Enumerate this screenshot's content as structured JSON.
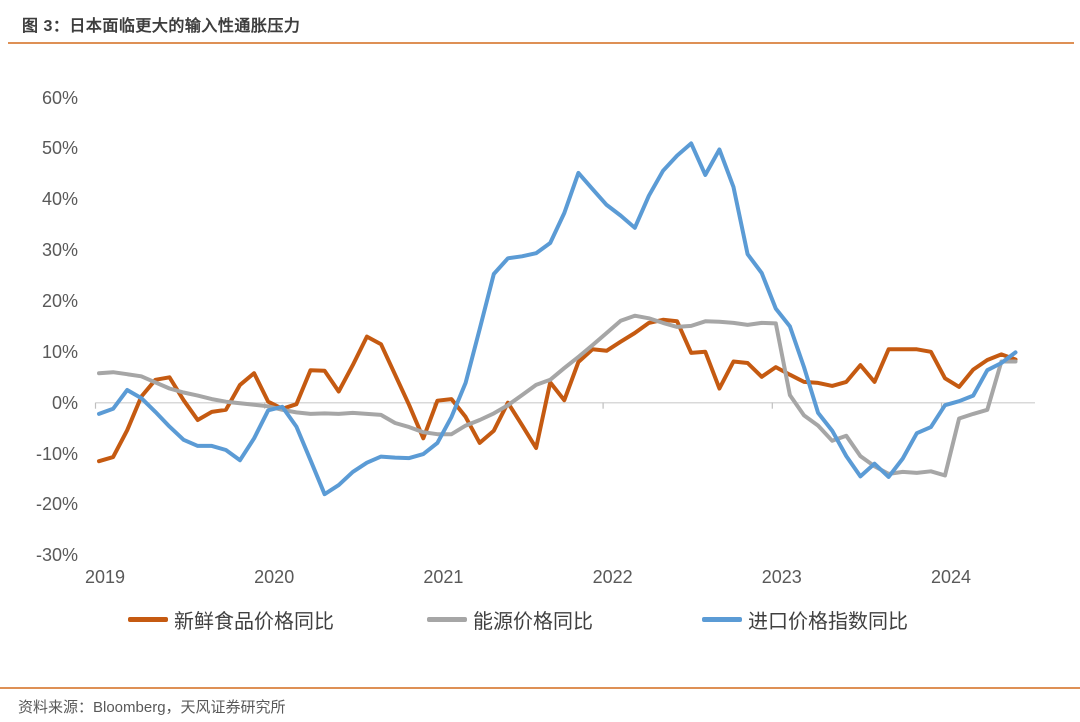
{
  "page": {
    "title": "图 3：日本面临更大的输入性通胀压力",
    "source": "资料来源：Bloomberg，天风证券研究所"
  },
  "accent_rule_color": "#DE9055",
  "chart_data": {
    "type": "line",
    "title": "日本面临更大的输入性通胀压力",
    "x_unit": "month",
    "x_start": "2019-01",
    "x_end": "2024-06",
    "x_tick_labels": [
      "2019",
      "2020",
      "2021",
      "2022",
      "2023",
      "2024"
    ],
    "y_tick_labels": [
      "60%",
      "50%",
      "40%",
      "30%",
      "20%",
      "10%",
      "0%",
      "-10%",
      "-20%",
      "-30%"
    ],
    "y_tick_values": [
      60,
      50,
      40,
      30,
      20,
      10,
      0,
      -10,
      -20,
      -30
    ],
    "ylim": [
      -30,
      60
    ],
    "grid": "zero-line-only",
    "zero_line_color": "#D9D9D9",
    "tick_color": "#BFBFBF",
    "legend_position": "bottom",
    "series": [
      {
        "name": "新鲜食品价格同比",
        "color": "#C55A11",
        "values": [
          -11.5,
          -10.7,
          -5.4,
          1.2,
          4.5,
          5.0,
          0.5,
          -3.4,
          -1.8,
          -1.4,
          3.5,
          5.8,
          0.2,
          -1.2,
          -0.3,
          6.4,
          6.3,
          2.2,
          7.4,
          13.0,
          11.5,
          5.5,
          -0.5,
          -7.0,
          0.4,
          0.7,
          -2.8,
          -7.9,
          -5.5,
          0.0,
          -4.4,
          -8.9,
          4.0,
          0.5,
          8.0,
          10.5,
          10.2,
          12.0,
          13.7,
          15.7,
          16.3,
          16.0,
          9.8,
          10.0,
          2.8,
          8.1,
          7.8,
          5.1,
          7.0,
          5.5,
          4.1,
          3.9,
          3.3,
          4.1,
          7.4,
          4.1,
          10.5,
          10.5,
          10.5,
          10.0,
          4.8,
          3.1,
          6.5,
          8.4,
          9.5,
          8.5
        ]
      },
      {
        "name": "能源价格同比",
        "color": "#A6A6A6",
        "values": [
          5.8,
          6.0,
          5.6,
          5.2,
          4.0,
          2.8,
          2.0,
          1.4,
          0.7,
          0.2,
          -0.1,
          -0.4,
          -0.7,
          -1.4,
          -1.9,
          -2.2,
          -2.1,
          -2.2,
          -2.0,
          -2.2,
          -2.4,
          -4.0,
          -4.8,
          -5.8,
          -6.2,
          -6.2,
          -4.5,
          -3.4,
          -2.1,
          -0.5,
          1.5,
          3.5,
          4.5,
          6.8,
          9.0,
          11.3,
          13.7,
          16.1,
          17.1,
          16.6,
          15.7,
          14.9,
          15.1,
          16.0,
          15.9,
          15.7,
          15.3,
          15.7,
          15.6,
          1.5,
          -2.5,
          -4.5,
          -7.5,
          -6.5,
          -10.5,
          -12.5,
          -14.0,
          -13.6,
          -13.8,
          -13.5,
          -14.3,
          -3.1,
          -2.2,
          -1.4,
          8.1,
          8.1
        ]
      },
      {
        "name": "进口价格指数同比",
        "color": "#5B9BD5",
        "values": [
          -2.2,
          -1.2,
          2.5,
          0.9,
          -1.8,
          -4.7,
          -7.3,
          -8.5,
          -8.5,
          -9.3,
          -11.3,
          -7.0,
          -1.5,
          -0.8,
          -4.7,
          -11.3,
          -18.0,
          -16.2,
          -13.6,
          -11.8,
          -10.6,
          -10.8,
          -10.9,
          -10.1,
          -7.9,
          -2.8,
          3.9,
          14.5,
          25.3,
          28.4,
          28.8,
          29.4,
          31.4,
          37.3,
          45.2,
          42.0,
          38.9,
          36.8,
          34.4,
          40.7,
          45.6,
          48.6,
          51.0,
          44.8,
          49.8,
          42.4,
          29.2,
          25.5,
          18.5,
          15.0,
          7.0,
          -2.0,
          -5.5,
          -10.5,
          -14.5,
          -12.0,
          -14.6,
          -11.0,
          -6.0,
          -4.8,
          -0.5,
          0.3,
          1.4,
          6.4,
          7.8,
          9.9
        ]
      }
    ]
  }
}
